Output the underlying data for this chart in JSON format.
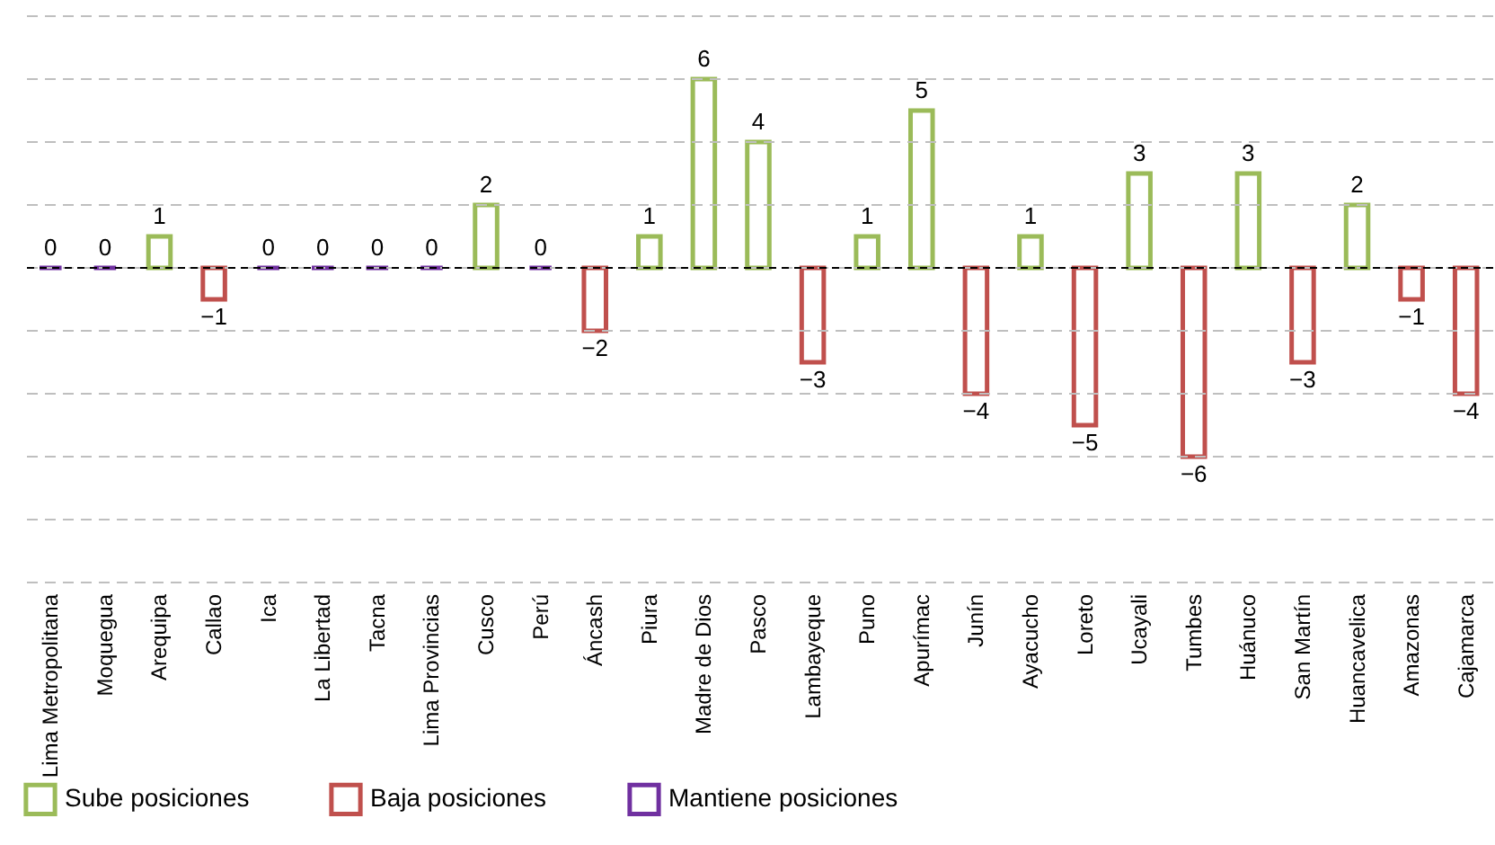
{
  "chart_data": {
    "type": "bar",
    "categories": [
      "Lima Metropolitana",
      "Moquegua",
      "Arequipa",
      "Callao",
      "Ica",
      "La Libertad",
      "Tacna",
      "Lima Provincias",
      "Cusco",
      "Perú",
      "Áncash",
      "Piura",
      "Madre de Dios",
      "Pasco",
      "Lambayeque",
      "Puno",
      "Apurímac",
      "Junín",
      "Ayacucho",
      "Loreto",
      "Ucayali",
      "Tumbes",
      "Huánuco",
      "San Martín",
      "Huancavelica",
      "Amazonas",
      "Cajamarca"
    ],
    "series": [
      {
        "name": "Sube posiciones",
        "color": "#9bbb59",
        "values": [
          null,
          null,
          1,
          null,
          null,
          null,
          null,
          null,
          2,
          null,
          null,
          1,
          6,
          4,
          null,
          1,
          5,
          null,
          1,
          null,
          3,
          null,
          3,
          null,
          2,
          null,
          null
        ]
      },
      {
        "name": "Baja posiciones",
        "color": "#c0504d",
        "values": [
          null,
          null,
          null,
          -1,
          null,
          null,
          null,
          null,
          null,
          null,
          -2,
          null,
          null,
          null,
          -3,
          null,
          null,
          -4,
          null,
          -5,
          null,
          -6,
          null,
          -3,
          null,
          -1,
          -4
        ]
      },
      {
        "name": "Mantiene posiciones",
        "color": "#7030a0",
        "values": [
          0,
          0,
          null,
          null,
          0,
          0,
          0,
          0,
          null,
          0,
          null,
          null,
          null,
          null,
          null,
          null,
          null,
          null,
          null,
          null,
          null,
          null,
          null,
          null,
          null,
          null,
          null
        ]
      }
    ],
    "ylim": [
      -10,
      8
    ],
    "yticks": [
      {
        "value": -10,
        "label": null
      },
      {
        "value": -8,
        "label": null
      },
      {
        "value": -6,
        "label": null
      },
      {
        "value": -4,
        "label": null
      },
      {
        "value": -2,
        "label": null
      },
      {
        "value": 0,
        "label": null
      },
      {
        "value": 2,
        "label": null
      },
      {
        "value": 4,
        "label": null
      },
      {
        "value": 6,
        "label": null
      },
      {
        "value": 8,
        "label": null
      }
    ],
    "tick_labels": "x",
    "grid": "y",
    "data_labels": true,
    "legend": "bottom",
    "ref_lines": [
      {
        "axis": "y",
        "value": 0,
        "color": "#000000",
        "line_style": "dashed"
      }
    ]
  }
}
